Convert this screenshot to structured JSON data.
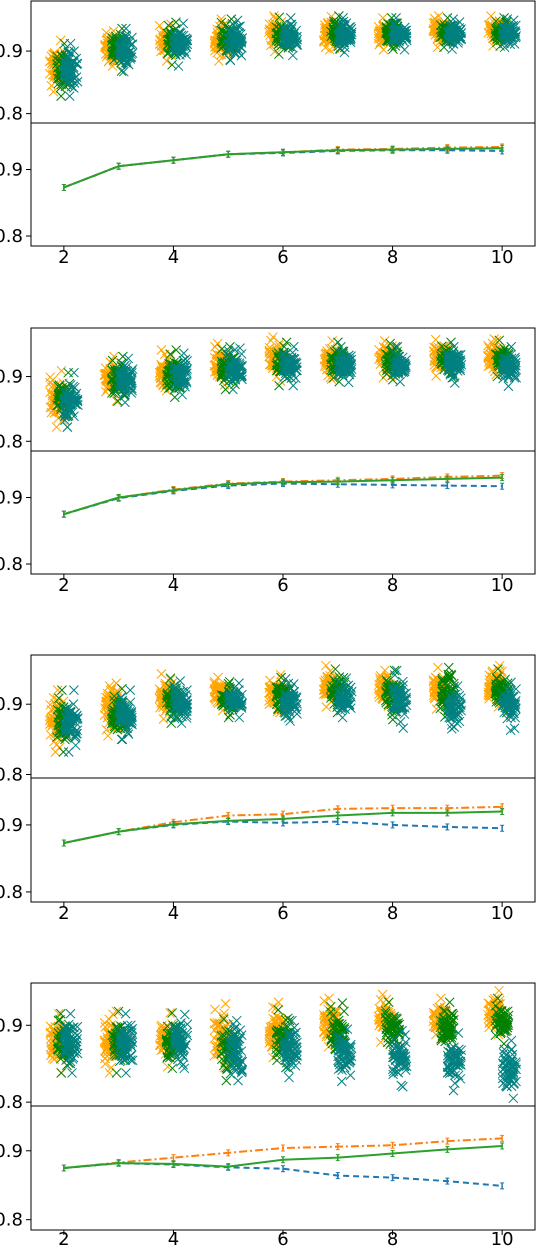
{
  "colors": {
    "orange": "#ffa500",
    "green": "#008000",
    "teal": "#008080",
    "line_orange": "#ff7f0e",
    "line_green": "#2ca02c",
    "line_blue": "#1f77b4"
  },
  "chart_data": [
    {
      "panel": 1,
      "type": "scatter",
      "marker": "x",
      "x": [
        2,
        3,
        4,
        5,
        6,
        7,
        8,
        9,
        10
      ],
      "xlim": [
        1.4,
        10.6
      ],
      "ylim": [
        0.785,
        0.98
      ],
      "yticks": [
        0.8,
        0.9
      ],
      "ytick_labels": [
        "0.8",
        "0.9"
      ],
      "series": [
        {
          "color": "orange",
          "offset": -0.13,
          "min": [
            0.835,
            0.876,
            0.884,
            0.884,
            0.899,
            0.902,
            0.902,
            0.906,
            0.908
          ],
          "max": [
            0.917,
            0.932,
            0.943,
            0.951,
            0.956,
            0.955,
            0.953,
            0.956,
            0.956
          ]
        },
        {
          "color": "green",
          "offset": 0.0,
          "min": [
            0.828,
            0.868,
            0.878,
            0.886,
            0.895,
            0.903,
            0.903,
            0.906,
            0.908
          ],
          "max": [
            0.912,
            0.936,
            0.946,
            0.951,
            0.954,
            0.956,
            0.953,
            0.953,
            0.953
          ]
        },
        {
          "color": "teal",
          "offset": 0.13,
          "min": [
            0.828,
            0.867,
            0.876,
            0.885,
            0.893,
            0.898,
            0.902,
            0.903,
            0.906
          ],
          "max": [
            0.912,
            0.936,
            0.944,
            0.949,
            0.953,
            0.953,
            0.953,
            0.951,
            0.951
          ]
        }
      ]
    },
    {
      "panel": 1,
      "type": "line",
      "x": [
        2,
        3,
        4,
        5,
        6,
        7,
        8,
        9,
        10
      ],
      "xlim": [
        1.4,
        10.6
      ],
      "ylim": [
        0.785,
        0.97
      ],
      "yticks": [
        0.8,
        0.9
      ],
      "ytick_labels": [
        "0.8",
        "0.9"
      ],
      "xticks": [
        2,
        4,
        6,
        8,
        10
      ],
      "xtick_labels": [
        "2",
        "4",
        "6",
        "8",
        "10"
      ],
      "series": [
        {
          "color": "line_orange",
          "style": "dashdot",
          "values": [
            0.873,
            0.905,
            0.914,
            0.923,
            0.926,
            0.93,
            0.931,
            0.933,
            0.934
          ]
        },
        {
          "color": "line_blue",
          "style": "dashed",
          "values": [
            0.873,
            0.905,
            0.914,
            0.923,
            0.925,
            0.928,
            0.929,
            0.929,
            0.928
          ]
        },
        {
          "color": "line_green",
          "style": "solid",
          "values": [
            0.873,
            0.905,
            0.914,
            0.923,
            0.926,
            0.929,
            0.93,
            0.931,
            0.932
          ]
        }
      ]
    },
    {
      "panel": 2,
      "type": "scatter",
      "marker": "x",
      "x": [
        2,
        3,
        4,
        5,
        6,
        7,
        8,
        9,
        10
      ],
      "xlim": [
        1.4,
        10.6
      ],
      "ylim": [
        0.785,
        0.975
      ],
      "yticks": [
        0.8,
        0.9
      ],
      "ytick_labels": [
        "0.8",
        "0.9"
      ],
      "series": [
        {
          "color": "orange",
          "offset": -0.13,
          "min": [
            0.822,
            0.862,
            0.878,
            0.887,
            0.893,
            0.896,
            0.898,
            0.901,
            0.903
          ],
          "max": [
            0.909,
            0.931,
            0.941,
            0.951,
            0.961,
            0.955,
            0.955,
            0.957,
            0.958
          ]
        },
        {
          "color": "green",
          "offset": 0.0,
          "min": [
            0.822,
            0.862,
            0.868,
            0.88,
            0.886,
            0.892,
            0.895,
            0.898,
            0.9
          ],
          "max": [
            0.906,
            0.931,
            0.941,
            0.946,
            0.953,
            0.953,
            0.951,
            0.953,
            0.956
          ]
        },
        {
          "color": "teal",
          "offset": 0.13,
          "min": [
            0.822,
            0.86,
            0.872,
            0.88,
            0.886,
            0.891,
            0.892,
            0.89,
            0.885
          ],
          "max": [
            0.906,
            0.928,
            0.936,
            0.944,
            0.946,
            0.946,
            0.946,
            0.946,
            0.946
          ]
        }
      ]
    },
    {
      "panel": 2,
      "type": "line",
      "x": [
        2,
        3,
        4,
        5,
        6,
        7,
        8,
        9,
        10
      ],
      "xlim": [
        1.4,
        10.6
      ],
      "ylim": [
        0.785,
        0.97
      ],
      "yticks": [
        0.8,
        0.9
      ],
      "ytick_labels": [
        "0.8",
        "0.9"
      ],
      "xticks": [
        2,
        4,
        6,
        8,
        10
      ],
      "xtick_labels": [
        "2",
        "4",
        "6",
        "8",
        "10"
      ],
      "series": [
        {
          "color": "line_orange",
          "style": "dashdot",
          "values": [
            0.875,
            0.9,
            0.912,
            0.921,
            0.924,
            0.926,
            0.928,
            0.931,
            0.933
          ]
        },
        {
          "color": "line_blue",
          "style": "dashed",
          "values": [
            0.875,
            0.899,
            0.91,
            0.918,
            0.921,
            0.92,
            0.919,
            0.918,
            0.917
          ]
        },
        {
          "color": "line_green",
          "style": "solid",
          "values": [
            0.875,
            0.9,
            0.911,
            0.92,
            0.923,
            0.924,
            0.926,
            0.928,
            0.93
          ]
        }
      ]
    },
    {
      "panel": 3,
      "type": "scatter",
      "marker": "x",
      "x": [
        2,
        3,
        4,
        5,
        6,
        7,
        8,
        9,
        10
      ],
      "xlim": [
        1.4,
        10.6
      ],
      "ylim": [
        0.795,
        0.97
      ],
      "yticks": [
        0.8,
        0.9
      ],
      "ytick_labels": [
        "0.8",
        "0.9"
      ],
      "series": [
        {
          "color": "orange",
          "offset": -0.13,
          "min": [
            0.832,
            0.855,
            0.879,
            0.891,
            0.888,
            0.896,
            0.897,
            0.893,
            0.896
          ],
          "max": [
            0.92,
            0.93,
            0.943,
            0.938,
            0.942,
            0.955,
            0.948,
            0.952,
            0.955
          ]
        },
        {
          "color": "green",
          "offset": 0.0,
          "min": [
            0.832,
            0.85,
            0.873,
            0.881,
            0.883,
            0.888,
            0.878,
            0.882,
            0.888
          ],
          "max": [
            0.92,
            0.922,
            0.937,
            0.932,
            0.938,
            0.95,
            0.948,
            0.952,
            0.95
          ]
        },
        {
          "color": "teal",
          "offset": 0.13,
          "min": [
            0.832,
            0.85,
            0.873,
            0.881,
            0.876,
            0.881,
            0.866,
            0.865,
            0.863
          ],
          "max": [
            0.92,
            0.92,
            0.933,
            0.93,
            0.936,
            0.937,
            0.948,
            0.926,
            0.931
          ]
        }
      ]
    },
    {
      "panel": 3,
      "type": "line",
      "x": [
        2,
        3,
        4,
        5,
        6,
        7,
        8,
        9,
        10
      ],
      "xlim": [
        1.4,
        10.6
      ],
      "ylim": [
        0.785,
        0.97
      ],
      "yticks": [
        0.8,
        0.9
      ],
      "ytick_labels": [
        "0.8",
        "0.9"
      ],
      "xticks": [
        2,
        4,
        6,
        8,
        10
      ],
      "xtick_labels": [
        "2",
        "4",
        "6",
        "8",
        "10"
      ],
      "series": [
        {
          "color": "line_orange",
          "style": "dashdot",
          "values": [
            0.873,
            0.89,
            0.904,
            0.914,
            0.916,
            0.924,
            0.925,
            0.925,
            0.927
          ]
        },
        {
          "color": "line_blue",
          "style": "dashed",
          "values": [
            0.873,
            0.89,
            0.9,
            0.905,
            0.903,
            0.905,
            0.9,
            0.897,
            0.895
          ]
        },
        {
          "color": "line_green",
          "style": "solid",
          "values": [
            0.873,
            0.89,
            0.901,
            0.906,
            0.909,
            0.914,
            0.918,
            0.918,
            0.92
          ]
        }
      ]
    },
    {
      "panel": 4,
      "type": "scatter",
      "marker": "x",
      "x": [
        2,
        3,
        4,
        5,
        6,
        7,
        8,
        9,
        10
      ],
      "xlim": [
        1.4,
        10.6
      ],
      "ylim": [
        0.795,
        0.955
      ],
      "yticks": [
        0.8,
        0.9
      ],
      "ytick_labels": [
        "0.8",
        "0.9"
      ],
      "series": [
        {
          "color": "orange",
          "offset": -0.13,
          "min": [
            0.838,
            0.838,
            0.846,
            0.845,
            0.858,
            0.872,
            0.878,
            0.883,
            0.888
          ],
          "max": [
            0.915,
            0.918,
            0.916,
            0.928,
            0.93,
            0.935,
            0.94,
            0.935,
            0.945
          ]
        },
        {
          "color": "green",
          "offset": 0.0,
          "min": [
            0.838,
            0.838,
            0.844,
            0.828,
            0.845,
            0.853,
            0.862,
            0.866,
            0.876
          ],
          "max": [
            0.915,
            0.918,
            0.916,
            0.908,
            0.92,
            0.929,
            0.93,
            0.93,
            0.935
          ]
        },
        {
          "color": "teal",
          "offset": 0.13,
          "min": [
            0.838,
            0.838,
            0.844,
            0.828,
            0.832,
            0.827,
            0.82,
            0.815,
            0.805
          ],
          "max": [
            0.915,
            0.915,
            0.914,
            0.906,
            0.906,
            0.895,
            0.893,
            0.89,
            0.88
          ]
        }
      ]
    },
    {
      "panel": 4,
      "type": "line",
      "x": [
        2,
        3,
        4,
        5,
        6,
        7,
        8,
        9,
        10
      ],
      "xlim": [
        1.4,
        10.6
      ],
      "ylim": [
        0.785,
        0.965
      ],
      "yticks": [
        0.8,
        0.9
      ],
      "ytick_labels": [
        "0.8",
        "0.9"
      ],
      "xticks": [
        2,
        4,
        6,
        8,
        10
      ],
      "xtick_labels": [
        "2",
        "4",
        "6",
        "8",
        "10"
      ],
      "series": [
        {
          "color": "line_orange",
          "style": "dashdot",
          "values": [
            0.875,
            0.883,
            0.89,
            0.897,
            0.904,
            0.906,
            0.908,
            0.914,
            0.918
          ]
        },
        {
          "color": "line_blue",
          "style": "dashed",
          "values": [
            0.875,
            0.882,
            0.88,
            0.876,
            0.874,
            0.864,
            0.861,
            0.856,
            0.849
          ]
        },
        {
          "color": "line_green",
          "style": "solid",
          "values": [
            0.875,
            0.882,
            0.881,
            0.877,
            0.887,
            0.89,
            0.896,
            0.902,
            0.907
          ]
        }
      ]
    }
  ]
}
